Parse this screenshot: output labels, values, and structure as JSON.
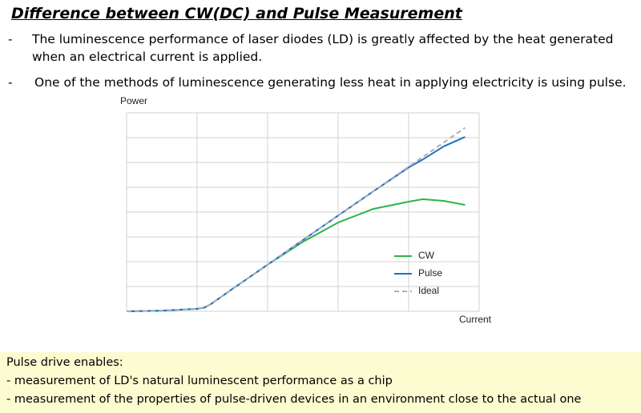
{
  "title": "Difference between CW(DC) and Pulse Measurement",
  "bullets": [
    {
      "marker": "-",
      "text": "The luminescence performance of laser diodes (LD) is greatly affected by the heat generated when an electrical current is applied."
    },
    {
      "marker": "-",
      "text": "One of the methods of luminescence generating less heat in applying electricity is using pulse."
    }
  ],
  "chart_data": {
    "type": "line",
    "xlabel": "Current",
    "ylabel": "Power",
    "x": [
      0,
      0.5,
      1.0,
      1.1,
      1.2,
      1.5,
      2,
      2.5,
      3,
      3.5,
      4,
      4.2,
      4.5,
      4.8
    ],
    "series": [
      {
        "name": "CW",
        "color": "#2db34a",
        "style": "solid",
        "values": [
          0,
          0.03,
          0.1,
          0.15,
          0.3,
          0.9,
          1.88,
          2.8,
          3.58,
          4.13,
          4.42,
          4.52,
          4.45,
          4.29
        ]
      },
      {
        "name": "Pulse",
        "color": "#2272b9",
        "style": "solid",
        "values": [
          0,
          0.03,
          0.1,
          0.15,
          0.3,
          0.9,
          1.88,
          2.87,
          3.86,
          4.84,
          5.8,
          6.12,
          6.65,
          7.03
        ]
      },
      {
        "name": "Ideal",
        "color": "#a7aec0",
        "style": "dashed",
        "values": [
          0,
          0.03,
          0.1,
          0.15,
          0.3,
          0.9,
          1.88,
          2.87,
          3.86,
          4.84,
          5.83,
          6.22,
          6.81,
          7.4
        ]
      }
    ],
    "xlim": [
      0,
      5
    ],
    "xticks": [
      0,
      1,
      2,
      3,
      4,
      5
    ],
    "ylim": [
      0,
      8
    ],
    "yticks": [
      0,
      1,
      2,
      3,
      4,
      5,
      6,
      7,
      8
    ],
    "grid": true,
    "legend": "lower-right"
  },
  "note": {
    "lines": [
      "Pulse drive enables:",
      "- measurement of LD's natural luminescent performance as a chip",
      "- measurement of the properties of pulse-driven devices in an environment close to the actual one"
    ]
  }
}
